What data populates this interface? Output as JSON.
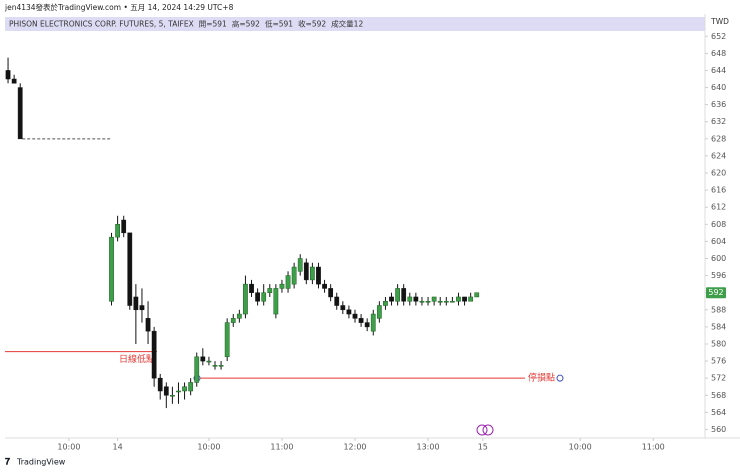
{
  "chart_data": {
    "type": "candlestick",
    "attribution": "jen4134發表於TradingView.com • 五月 14, 2024 14:29 UTC+8",
    "symbol": "PHISON ELECTRONICS CORP. FUTURES, 5, TAIFEX",
    "header_stats": [
      "開=591",
      "高=592",
      "低=591",
      "收=592",
      "成交量12"
    ],
    "currency": "TWD",
    "footer": "TradingView",
    "x": [
      0,
      1,
      2,
      17,
      18,
      19,
      20,
      21,
      22,
      23,
      24,
      25,
      26,
      27,
      28,
      29,
      30,
      31,
      32,
      33,
      34,
      35,
      36,
      37,
      38,
      39,
      40,
      41,
      42,
      43,
      44,
      45,
      46,
      47,
      48,
      49,
      50,
      51,
      52,
      53,
      54,
      55,
      56,
      57,
      58,
      59,
      60,
      61,
      62,
      63,
      64,
      65,
      66,
      67,
      68,
      69,
      70,
      71,
      72,
      73,
      74,
      75,
      76,
      77
    ],
    "open": [
      644,
      642,
      640,
      590,
      605,
      609,
      606,
      591,
      589,
      586,
      583,
      572,
      570,
      568,
      569,
      569,
      569,
      571,
      577,
      576,
      575,
      575,
      577,
      585,
      586,
      587,
      594,
      592,
      590,
      592,
      587,
      593,
      593,
      594,
      597,
      599,
      595,
      598,
      594,
      593,
      591,
      589,
      588,
      587,
      586,
      585,
      583,
      586,
      589,
      591,
      590,
      593,
      590,
      591,
      590,
      590,
      590,
      590,
      590,
      590,
      590,
      591,
      590,
      591
    ],
    "high": [
      647,
      643,
      641,
      606,
      610,
      610,
      606,
      594,
      593,
      590,
      584,
      573,
      571,
      570,
      571,
      571,
      572,
      578,
      579,
      577,
      576,
      576,
      586,
      587,
      588,
      596,
      595,
      593,
      594,
      594,
      594,
      595,
      597,
      599,
      601,
      600,
      599,
      599,
      595,
      594,
      592,
      590,
      589,
      588,
      587,
      586,
      588,
      590,
      591,
      592,
      594,
      594,
      592,
      592,
      591,
      591,
      591,
      591,
      591,
      591,
      592,
      591,
      592,
      592
    ],
    "low": [
      641,
      641,
      628,
      589,
      604,
      605,
      588,
      580,
      585,
      580,
      570,
      567,
      565,
      566,
      566,
      567,
      568,
      570,
      575,
      575,
      574,
      574,
      576,
      584,
      585,
      586,
      591,
      589,
      589,
      591,
      586,
      592,
      592,
      593,
      596,
      594,
      594,
      593,
      592,
      590,
      588,
      587,
      586,
      585,
      584,
      583,
      582,
      585,
      588,
      589,
      589,
      589,
      589,
      589,
      589,
      589,
      589,
      589,
      589,
      590,
      589,
      589,
      590,
      591
    ],
    "close": [
      642,
      641,
      628,
      605,
      608,
      606,
      589,
      588,
      588,
      583,
      572,
      569,
      568,
      568,
      569,
      570,
      571,
      577,
      576,
      576,
      575,
      575,
      585,
      586,
      587,
      594,
      592,
      590,
      592,
      593,
      593,
      594,
      596,
      598,
      600,
      595,
      598,
      594,
      593,
      591,
      589,
      588,
      587,
      586,
      585,
      584,
      587,
      589,
      590,
      590,
      593,
      590,
      591,
      590,
      590,
      590,
      591,
      590,
      590,
      590,
      591,
      590,
      591,
      592
    ],
    "up_color": "#3f9e4a",
    "down_color": "#131313",
    "prev_close": 628,
    "last_price": 592,
    "annotations": [
      {
        "value": 578.2,
        "label": "日線低點",
        "color": "#e53935"
      },
      {
        "value": 572,
        "label": "停損點",
        "color": "#e53935"
      }
    ],
    "xlim": [
      -0.5,
      114.5
    ],
    "xticks": [
      {
        "value": 10,
        "label": "10:00"
      },
      {
        "value": 18,
        "label": "14"
      },
      {
        "value": 33,
        "label": "10:00"
      },
      {
        "value": 45,
        "label": "11:00"
      },
      {
        "value": 57,
        "label": "12:00"
      },
      {
        "value": 69,
        "label": "13:00"
      },
      {
        "value": 78,
        "label": "15"
      },
      {
        "value": 94,
        "label": "10:00"
      },
      {
        "value": 106,
        "label": "11:00"
      }
    ],
    "ylim": [
      558,
      653
    ],
    "yticks": [
      560,
      564,
      568,
      572,
      576,
      580,
      584,
      588,
      592,
      596,
      600,
      604,
      608,
      612,
      616,
      620,
      624,
      628,
      632,
      636,
      640,
      644,
      648,
      652
    ]
  }
}
